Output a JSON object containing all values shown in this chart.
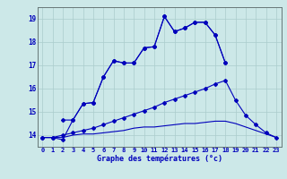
{
  "xlabel": "Graphe des températures (°c)",
  "x_ticks": [
    0,
    1,
    2,
    3,
    4,
    5,
    6,
    7,
    8,
    9,
    10,
    11,
    12,
    13,
    14,
    15,
    16,
    17,
    18,
    19,
    20,
    21,
    22,
    23
  ],
  "ylim": [
    13.5,
    19.5
  ],
  "yticks": [
    14,
    15,
    16,
    17,
    18,
    19
  ],
  "background_color": "#cce8e8",
  "grid_color": "#aacccc",
  "line_color": "#0000bb",
  "line1_x": [
    0,
    1,
    2,
    3,
    4,
    5,
    6,
    7,
    8,
    9,
    10,
    11,
    12,
    13,
    14,
    15,
    16,
    17,
    18
  ],
  "line1_y": [
    13.9,
    13.9,
    13.8,
    14.65,
    15.35,
    15.4,
    16.5,
    17.2,
    17.1,
    17.1,
    17.75,
    17.8,
    19.1,
    18.45,
    18.6,
    18.85,
    18.85,
    18.3,
    17.1
  ],
  "line2_x": [
    2,
    3,
    4,
    5,
    6,
    7,
    8,
    9,
    10,
    11,
    12,
    13,
    14,
    15,
    16,
    17,
    18
  ],
  "line2_y": [
    14.65,
    14.65,
    15.35,
    15.4,
    16.5,
    17.2,
    17.1,
    17.1,
    17.75,
    17.8,
    19.1,
    18.45,
    18.6,
    18.85,
    18.85,
    18.3,
    17.1
  ],
  "line3_x": [
    0,
    1,
    2,
    3,
    4,
    5,
    6,
    7,
    8,
    9,
    10,
    11,
    12,
    13,
    14,
    15,
    16,
    17,
    18,
    19,
    20,
    21,
    22,
    23
  ],
  "line3_y": [
    13.9,
    13.9,
    14.0,
    14.1,
    14.2,
    14.3,
    14.45,
    14.6,
    14.75,
    14.9,
    15.05,
    15.2,
    15.4,
    15.55,
    15.7,
    15.85,
    16.0,
    16.2,
    16.35,
    15.5,
    14.85,
    14.45,
    14.1,
    13.9
  ],
  "line4_x": [
    0,
    1,
    2,
    3,
    4,
    5,
    6,
    7,
    8,
    9,
    10,
    11,
    12,
    13,
    14,
    15,
    16,
    17,
    18,
    19,
    20,
    21,
    22,
    23
  ],
  "line4_y": [
    13.9,
    13.9,
    13.9,
    14.0,
    14.05,
    14.05,
    14.1,
    14.15,
    14.2,
    14.3,
    14.35,
    14.35,
    14.4,
    14.45,
    14.5,
    14.5,
    14.55,
    14.6,
    14.6,
    14.5,
    14.35,
    14.2,
    14.05,
    13.9
  ]
}
